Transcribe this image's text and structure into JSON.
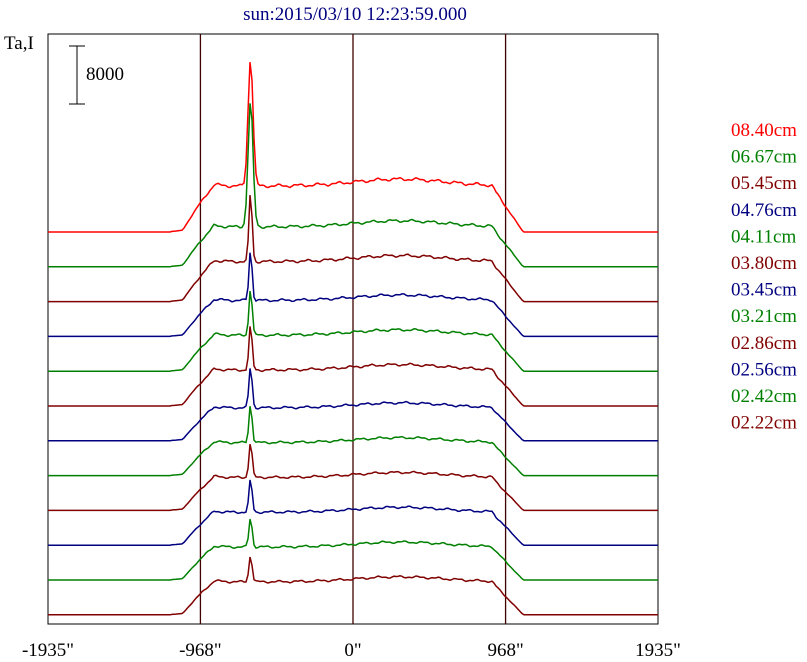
{
  "chart_data": {
    "type": "line",
    "title": "sun:2015/03/10 12:23:59.000",
    "ylabel": "Ta,I",
    "scale_bar_label": "8000",
    "x_ticks": [
      {
        "value": -1935,
        "label": "-1935\""
      },
      {
        "value": -968,
        "label": "-968\""
      },
      {
        "value": 0,
        "label": "0\""
      },
      {
        "value": 968,
        "label": "968\""
      },
      {
        "value": 1935,
        "label": "1935\""
      }
    ],
    "xlim": [
      -1935,
      1935
    ],
    "vertical_lines": [
      -968,
      0,
      968
    ],
    "grid": false,
    "legend_position": "right",
    "series": [
      {
        "name": "08.40cm",
        "color": "#ff0000"
      },
      {
        "name": "06.67cm",
        "color": "#008000"
      },
      {
        "name": "05.45cm",
        "color": "#800000"
      },
      {
        "name": "04.76cm",
        "color": "#000080"
      },
      {
        "name": "04.11cm",
        "color": "#008000"
      },
      {
        "name": "03.80cm",
        "color": "#800000"
      },
      {
        "name": "03.45cm",
        "color": "#000080"
      },
      {
        "name": "03.21cm",
        "color": "#008000"
      },
      {
        "name": "02.86cm",
        "color": "#800000"
      },
      {
        "name": "02.56cm",
        "color": "#000080"
      },
      {
        "name": "02.42cm",
        "color": "#008000"
      },
      {
        "name": "02.22cm",
        "color": "#800000"
      }
    ]
  }
}
